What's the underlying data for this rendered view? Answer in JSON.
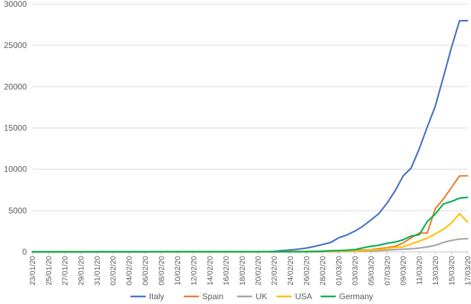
{
  "chart_data": {
    "type": "line",
    "title": "",
    "xlabel": "",
    "ylabel": "",
    "ylim": [
      0,
      30000
    ],
    "y_ticks": [
      0,
      5000,
      10000,
      15000,
      20000,
      25000,
      30000
    ],
    "grid": "horizontal",
    "legend_position": "bottom",
    "x": [
      "23/01/20",
      "24/01/20",
      "25/01/20",
      "26/01/20",
      "27/01/20",
      "28/01/20",
      "29/01/20",
      "30/01/20",
      "31/01/20",
      "01/02/20",
      "02/02/20",
      "03/02/20",
      "04/02/20",
      "05/02/20",
      "06/02/20",
      "07/02/20",
      "08/02/20",
      "09/02/20",
      "10/02/20",
      "11/02/20",
      "12/02/20",
      "13/02/20",
      "14/02/20",
      "15/02/20",
      "16/02/20",
      "17/02/20",
      "18/02/20",
      "19/02/20",
      "20/02/20",
      "21/02/20",
      "22/02/20",
      "23/02/20",
      "24/02/20",
      "25/02/20",
      "26/02/20",
      "27/02/20",
      "28/02/20",
      "29/02/20",
      "01/03/20",
      "02/03/20",
      "03/03/20",
      "04/03/20",
      "05/03/20",
      "06/03/20",
      "07/03/20",
      "08/03/20",
      "09/03/20",
      "10/03/20",
      "11/03/20",
      "12/03/20",
      "13/03/20",
      "14/03/20",
      "15/03/20",
      "16/03/20",
      "17/03/20"
    ],
    "x_tick_labels": [
      "23/01/20",
      "25/01/20",
      "27/01/20",
      "29/01/20",
      "31/01/20",
      "02/02/20",
      "04/02/20",
      "06/02/20",
      "08/02/20",
      "10/02/20",
      "12/02/20",
      "14/02/20",
      "16/02/20",
      "18/02/20",
      "20/02/20",
      "22/02/20",
      "24/02/20",
      "26/02/20",
      "28/02/20",
      "01/03/20",
      "03/03/20",
      "05/03/20",
      "07/03/20",
      "09/03/20",
      "11/03/20",
      "13/03/20",
      "15/03/20",
      "17/03/20"
    ],
    "series": [
      {
        "name": "Italy",
        "color": "#4472C4",
        "values": [
          0,
          0,
          0,
          0,
          0,
          0,
          0,
          0,
          2,
          2,
          2,
          2,
          2,
          2,
          3,
          3,
          3,
          3,
          3,
          3,
          3,
          3,
          3,
          3,
          3,
          3,
          3,
          3,
          3,
          20,
          62,
          155,
          229,
          322,
          453,
          655,
          888,
          1128,
          1694,
          2036,
          2502,
          3089,
          3858,
          4636,
          5883,
          7375,
          9172,
          10149,
          12462,
          15113,
          17660,
          21157,
          24747,
          27980,
          28000
        ]
      },
      {
        "name": "Spain",
        "color": "#ED7D31",
        "values": [
          0,
          0,
          0,
          0,
          0,
          0,
          0,
          0,
          0,
          1,
          1,
          1,
          1,
          1,
          1,
          1,
          1,
          2,
          2,
          2,
          2,
          2,
          2,
          2,
          2,
          2,
          2,
          2,
          2,
          2,
          2,
          2,
          2,
          6,
          13,
          15,
          32,
          45,
          84,
          120,
          165,
          222,
          259,
          400,
          500,
          673,
          1073,
          1695,
          2277,
          2277,
          5232,
          6391,
          7798,
          9191,
          9200
        ]
      },
      {
        "name": "UK",
        "color": "#A5A5A5",
        "values": [
          0,
          0,
          0,
          0,
          0,
          0,
          0,
          0,
          2,
          2,
          2,
          2,
          2,
          2,
          3,
          3,
          3,
          3,
          8,
          8,
          9,
          9,
          9,
          9,
          9,
          9,
          9,
          9,
          9,
          9,
          9,
          9,
          13,
          13,
          13,
          16,
          20,
          23,
          36,
          40,
          51,
          85,
          114,
          160,
          206,
          271,
          321,
          373,
          456,
          590,
          798,
          1140,
          1391,
          1543,
          1600
        ]
      },
      {
        "name": "USA",
        "color": "#FFC000",
        "values": [
          1,
          1,
          2,
          2,
          5,
          5,
          5,
          5,
          6,
          7,
          8,
          11,
          11,
          11,
          12,
          12,
          12,
          12,
          12,
          12,
          13,
          13,
          15,
          15,
          15,
          15,
          15,
          15,
          15,
          35,
          35,
          35,
          53,
          53,
          59,
          60,
          62,
          70,
          76,
          101,
          122,
          153,
          221,
          278,
          417,
          537,
          605,
          959,
          1281,
          1663,
          2179,
          2726,
          3499,
          4632,
          3600
        ]
      },
      {
        "name": "Germany",
        "color": "#00B050",
        "values": [
          0,
          0,
          0,
          0,
          1,
          4,
          4,
          4,
          5,
          8,
          10,
          12,
          12,
          12,
          12,
          13,
          13,
          14,
          14,
          16,
          16,
          16,
          16,
          16,
          16,
          16,
          16,
          16,
          16,
          16,
          16,
          16,
          16,
          18,
          26,
          48,
          79,
          130,
          159,
          196,
          262,
          482,
          670,
          799,
          1040,
          1176,
          1457,
          1908,
          2078,
          3675,
          4585,
          5795,
          6100,
          6500,
          6600
        ]
      }
    ]
  }
}
